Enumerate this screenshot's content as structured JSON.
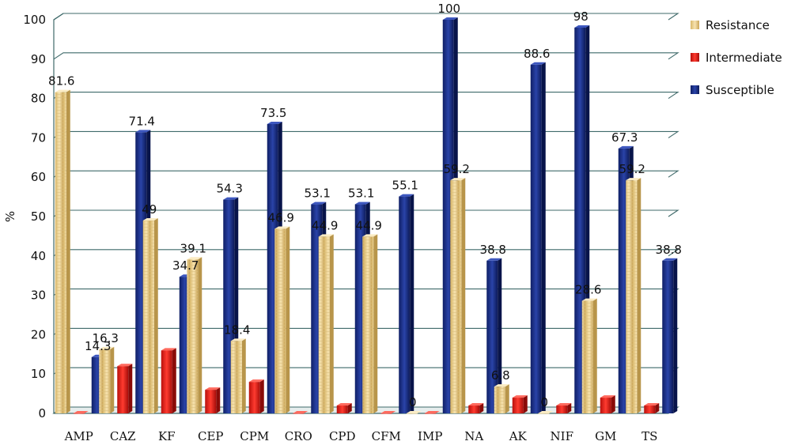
{
  "chart_data": {
    "type": "bar",
    "title": "",
    "xlabel": "",
    "ylabel": "%",
    "ylim": [
      0,
      100
    ],
    "yticks": [
      0,
      10,
      20,
      30,
      40,
      50,
      60,
      70,
      80,
      90,
      100
    ],
    "grid": true,
    "legend_position": "top-right",
    "categories": [
      "AMP",
      "CAZ",
      "KF",
      "CEP",
      "CPM",
      "CRO",
      "CPD",
      "CFM",
      "IMP",
      "NA",
      "AK",
      "NIF",
      "GM",
      "TS"
    ],
    "series": [
      {
        "name": "Resistance",
        "color": "#f2d79a",
        "values": [
          81.6,
          16.3,
          49,
          39.1,
          18.4,
          46.9,
          44.9,
          44.9,
          0,
          59.2,
          6.8,
          0,
          28.6,
          59.2
        ],
        "labels": [
          "81.6",
          "16.3",
          "49",
          "39.1",
          "18.4",
          "46.9",
          "44.9",
          "44.9",
          "0",
          "59.2",
          "6.8",
          "0",
          "28.6",
          "59.2"
        ]
      },
      {
        "name": "Intermediate",
        "color": "#e8201c",
        "values": [
          0,
          12,
          16,
          6,
          8,
          0,
          2,
          0,
          0,
          2,
          4,
          2,
          4,
          2
        ],
        "labels": []
      },
      {
        "name": "Susceptible",
        "color": "#1a2f8c",
        "values": [
          14.3,
          71.4,
          34.7,
          54.3,
          73.5,
          53.1,
          53.1,
          55.1,
          100,
          38.8,
          88.6,
          98,
          67.3,
          38.8
        ],
        "labels": [
          "14.3",
          "71.4",
          "34.7",
          "54.3",
          "73.5",
          "53.1",
          "53.1",
          "55.1",
          "100",
          "38.8",
          "88.6",
          "98",
          "67.3",
          "38.8"
        ]
      }
    ]
  }
}
